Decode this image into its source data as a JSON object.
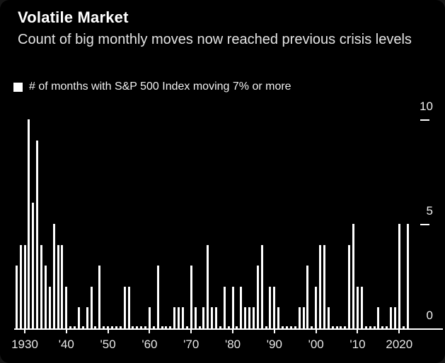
{
  "header": {
    "title": "Volatile Market",
    "subtitle": "Count of big monthly moves now reached previous crisis levels"
  },
  "legend": {
    "label": "# of months with S&P 500 Index moving 7% or more",
    "marker_color": "#ffffff"
  },
  "colors": {
    "background": "#000000",
    "bar": "#ffffff",
    "text": "#ffffff"
  },
  "chart_data": {
    "type": "bar",
    "title": "Volatile Market",
    "subtitle": "Count of big monthly moves now reached previous crisis levels",
    "series_label": "# of months with S&P 500 Index moving 7% or more",
    "xlabel": "",
    "ylabel": "",
    "ylim": [
      0,
      10
    ],
    "grid": false,
    "legend_position": "top-left",
    "start_year": 1928,
    "end_year": 2022,
    "values": [
      3,
      4,
      4,
      10,
      6,
      9,
      4,
      3,
      2,
      5,
      4,
      4,
      2,
      0,
      0,
      1,
      0,
      1,
      2,
      0,
      3,
      0,
      0,
      0,
      0,
      0,
      2,
      2,
      0,
      0,
      0,
      0,
      1,
      0,
      3,
      0,
      0,
      0,
      1,
      1,
      1,
      0,
      3,
      1,
      0,
      1,
      4,
      1,
      1,
      0,
      2,
      0,
      2,
      0,
      2,
      1,
      1,
      1,
      3,
      4,
      0,
      2,
      2,
      1,
      0,
      0,
      0,
      0,
      1,
      1,
      3,
      0,
      2,
      4,
      4,
      1,
      0,
      0,
      0,
      0,
      4,
      5,
      2,
      2,
      0,
      0,
      0,
      1,
      0,
      0,
      1,
      1,
      5,
      0,
      5
    ],
    "yticks": [
      {
        "value": 0,
        "label": "0"
      },
      {
        "value": 5,
        "label": "5"
      },
      {
        "value": 10,
        "label": "10"
      }
    ],
    "xticks": [
      {
        "year": 1930,
        "label": "1930"
      },
      {
        "year": 1940,
        "label": "'40"
      },
      {
        "year": 1950,
        "label": "'50"
      },
      {
        "year": 1960,
        "label": "'60"
      },
      {
        "year": 1970,
        "label": "'70"
      },
      {
        "year": 1980,
        "label": "'80"
      },
      {
        "year": 1990,
        "label": "'90"
      },
      {
        "year": 2000,
        "label": "'00"
      },
      {
        "year": 2010,
        "label": "'10"
      },
      {
        "year": 2020,
        "label": "2020"
      }
    ]
  }
}
